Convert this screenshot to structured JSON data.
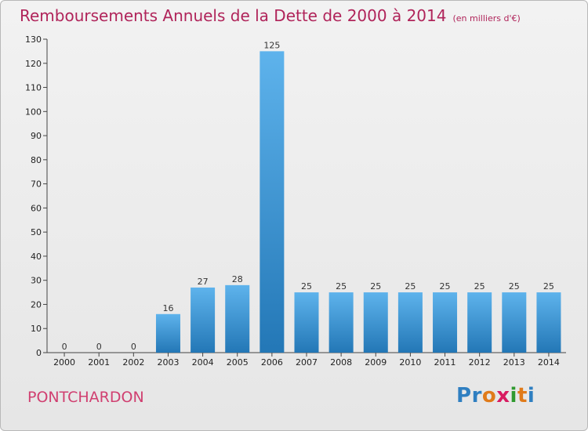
{
  "title": "Remboursements Annuels de la Dette de 2000 à 2014",
  "unit": "(en milliers d'€)",
  "commune": "PONTCHARDON",
  "logo": {
    "text": "Proxiti",
    "letter_colors": [
      "#2f7fc1",
      "#2f7fc1",
      "#e07b1a",
      "#d81b60",
      "#2f9a2f",
      "#e07b1a",
      "#2f7fc1"
    ]
  },
  "colors": {
    "bar_top": "#5eb3ec",
    "bar_bottom": "#2377b6",
    "title": "#b0245a",
    "commune": "#d03f70"
  },
  "chart_data": {
    "type": "bar",
    "categories": [
      "2000",
      "2001",
      "2002",
      "2003",
      "2004",
      "2005",
      "2006",
      "2007",
      "2008",
      "2009",
      "2010",
      "2011",
      "2012",
      "2013",
      "2014"
    ],
    "values": [
      0,
      0,
      0,
      16,
      27,
      28,
      125,
      25,
      25,
      25,
      25,
      25,
      25,
      25,
      25
    ],
    "title": "Remboursements Annuels de la Dette de 2000 à 2014",
    "xlabel": "",
    "ylabel": "",
    "ylim": [
      0,
      130
    ],
    "yticks": [
      0,
      10,
      20,
      30,
      40,
      50,
      60,
      70,
      80,
      90,
      100,
      110,
      120,
      130
    ],
    "grid": false
  }
}
